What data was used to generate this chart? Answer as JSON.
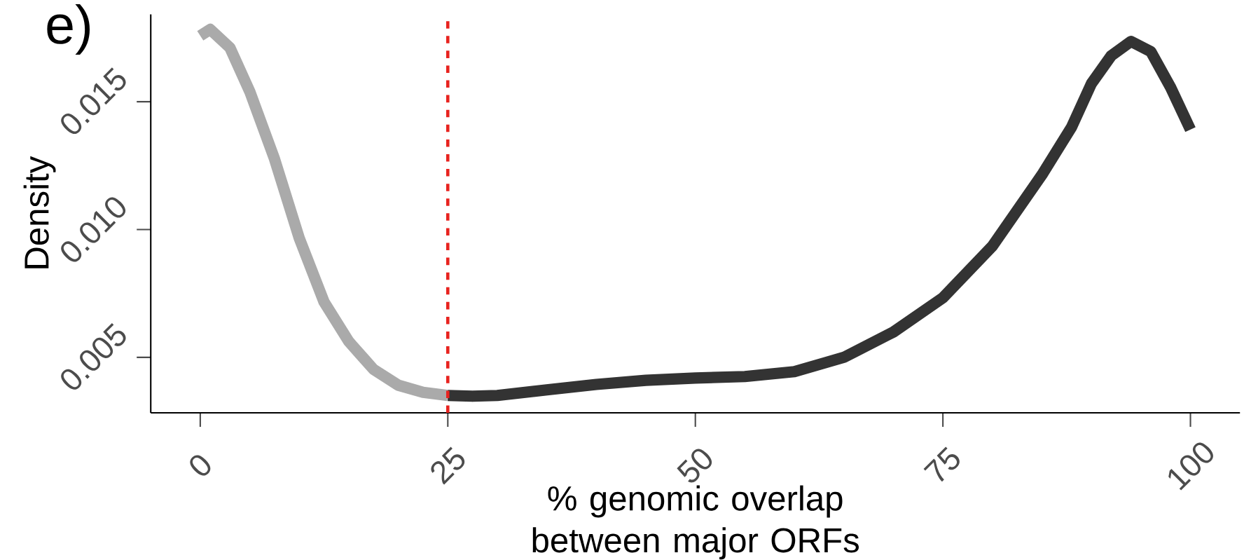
{
  "chart_data": {
    "type": "line",
    "title": "e)",
    "xlabel": "% genomic overlap between major ORFs",
    "ylabel": "Density",
    "xlim": [
      -5,
      105
    ],
    "ylim": [
      0.00283,
      0.01842
    ],
    "xticks": [
      0,
      25,
      50,
      75,
      100
    ],
    "yticks": [
      0.005,
      {
        "value": 0.01,
        "label": "0.010"
      },
      0.015
    ],
    "grid": false,
    "marker": "none",
    "line_style": "solid",
    "series": [
      {
        "color": "#aaaaaa",
        "x": [
          0,
          1,
          3,
          5,
          7.5,
          10,
          12.5,
          15,
          17.5,
          20,
          22.5,
          25
        ],
        "values": [
          0.01758,
          0.01783,
          0.01711,
          0.0154,
          0.01276,
          0.00966,
          0.00717,
          0.00562,
          0.00453,
          0.00391,
          0.00363,
          0.00351
        ]
      },
      {
        "color": "#333333",
        "x": [
          25,
          27.5,
          30,
          35,
          40,
          45,
          50,
          55,
          60,
          65,
          70,
          75,
          80,
          85,
          88,
          90,
          92,
          94,
          96,
          98,
          100
        ],
        "values": [
          0.00351,
          0.00348,
          0.00351,
          0.00373,
          0.00394,
          0.0041,
          0.00419,
          0.00425,
          0.00444,
          0.005,
          0.00599,
          0.00733,
          0.00935,
          0.01214,
          0.01401,
          0.01571,
          0.0168,
          0.01736,
          0.01696,
          0.01556,
          0.01391
        ]
      }
    ],
    "ref_lines": [
      {
        "axis": "x",
        "value": 25,
        "color": "#e8231f",
        "line_style": "dashed"
      }
    ]
  }
}
